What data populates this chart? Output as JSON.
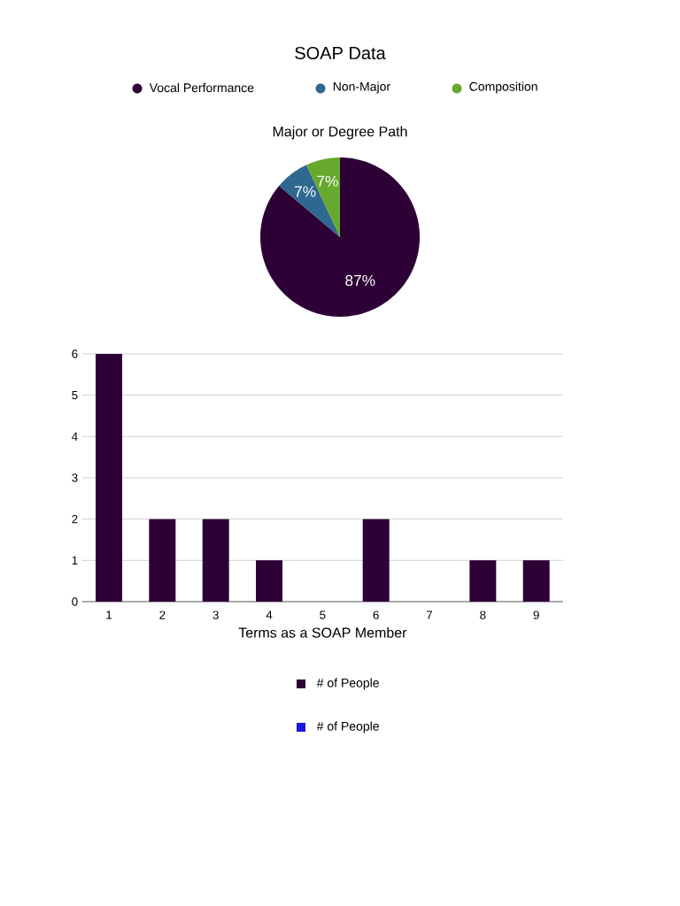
{
  "chart_data": [
    {
      "type": "pie",
      "title": "SOAP Data",
      "subtitle": "Major or Degree Path",
      "categories": [
        "Vocal Performance",
        "Non-Major",
        "Composition"
      ],
      "values": [
        87,
        7,
        7
      ],
      "colors": [
        "#2d0036",
        "#2e6890",
        "#67a92f"
      ],
      "value_labels": [
        "87%",
        "7%",
        "7%"
      ],
      "legend": "top"
    },
    {
      "type": "bar",
      "xlabel": "Terms as a SOAP Member",
      "categories": [
        "1",
        "2",
        "3",
        "4",
        "5",
        "6",
        "7",
        "8",
        "9"
      ],
      "series": [
        {
          "name": "# of People",
          "color": "#2d0036",
          "values": [
            6,
            2,
            2,
            1,
            0,
            2,
            0,
            1,
            1
          ]
        },
        {
          "name": "# of People",
          "color": "#1a1adc",
          "values": [
            null,
            null,
            null,
            null,
            null,
            null,
            null,
            null,
            null
          ]
        }
      ],
      "ylim": [
        0,
        6
      ],
      "yticks": [
        0,
        1,
        2,
        3,
        4,
        5,
        6
      ],
      "grid": "y",
      "legend": "bottom"
    }
  ]
}
